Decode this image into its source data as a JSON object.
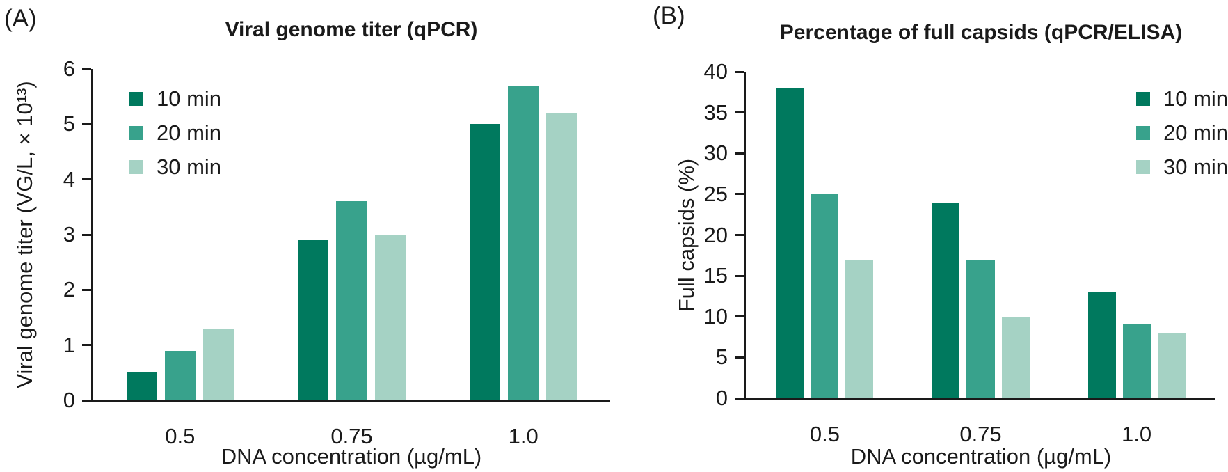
{
  "colors": {
    "series": [
      "#00795e",
      "#38a28c",
      "#a5d2c4"
    ],
    "text": "#1a1a1a",
    "axis": "#1a1a1a",
    "background": "#ffffff"
  },
  "chart_data": [
    {
      "type": "bar",
      "panel_label": "(A)",
      "title": "Viral genome titer (qPCR)",
      "xlabel": "DNA concentration (µg/mL)",
      "ylabel": "Viral genome titer (VG/L, × 10¹³)",
      "categories": [
        "0.5",
        "0.75",
        "1.0"
      ],
      "series": [
        {
          "name": "10 min",
          "values": [
            0.5,
            2.9,
            5.0
          ]
        },
        {
          "name": "20 min",
          "values": [
            0.9,
            3.6,
            5.7
          ]
        },
        {
          "name": "30 min",
          "values": [
            1.3,
            3.0,
            5.2
          ]
        }
      ],
      "ylim": [
        0,
        6
      ],
      "yticks": [
        0,
        1,
        2,
        3,
        4,
        5,
        6
      ],
      "legend_position": "top-left",
      "grid": false
    },
    {
      "type": "bar",
      "panel_label": "(B)",
      "title": "Percentage of full capsids (qPCR/ELISA)",
      "xlabel": "DNA concentration (µg/mL)",
      "ylabel": "Full capsids (%)",
      "categories": [
        "0.5",
        "0.75",
        "1.0"
      ],
      "series": [
        {
          "name": "10 min",
          "values": [
            38,
            24,
            13
          ]
        },
        {
          "name": "20 min",
          "values": [
            25,
            17,
            9
          ]
        },
        {
          "name": "30 min",
          "values": [
            17,
            10,
            8
          ]
        }
      ],
      "ylim": [
        0,
        40
      ],
      "yticks": [
        0,
        5,
        10,
        15,
        20,
        25,
        30,
        35,
        40
      ],
      "legend_position": "top-right",
      "grid": false
    }
  ]
}
